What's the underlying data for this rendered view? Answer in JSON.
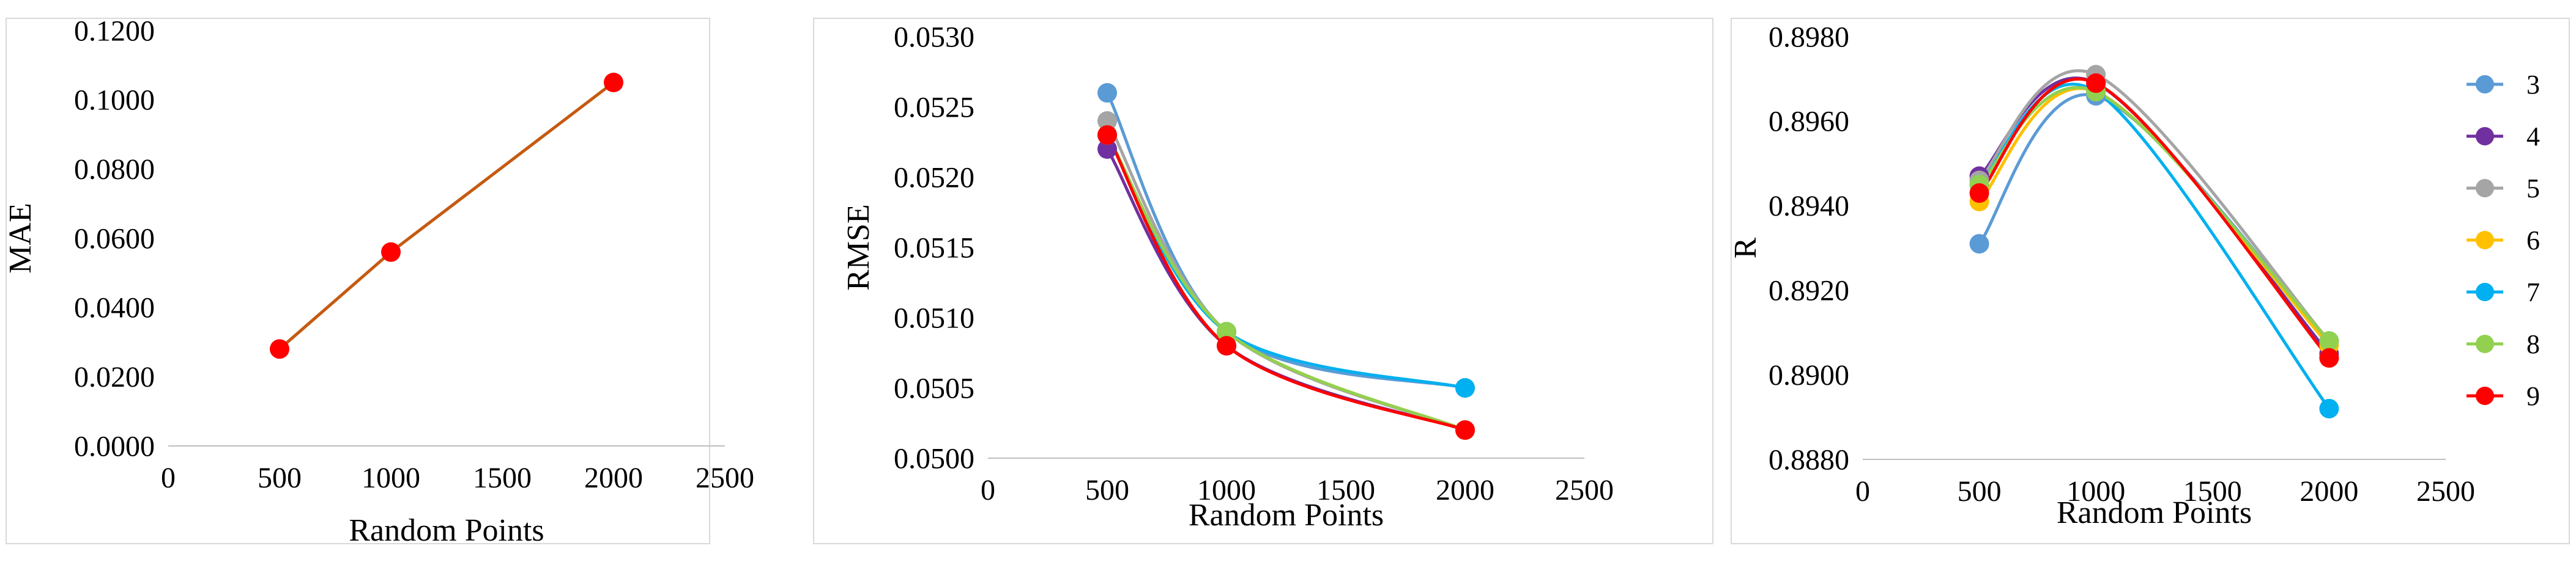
{
  "colors": {
    "3": "#5B9BD5",
    "4": "#7030A0",
    "5": "#A5A5A5",
    "6": "#FFC000",
    "7": "#00B0F0",
    "8": "#92D050",
    "9": "#FF0000",
    "mae_line": "#C55A11",
    "frame": "#D9D9D9",
    "axis": "#BFBFBF"
  },
  "chart_data": [
    {
      "id": "mae",
      "type": "line",
      "xlabel": "Random Points",
      "ylabel": "MAE",
      "xlim": [
        0,
        2500
      ],
      "ylim": [
        0,
        0.12
      ],
      "xticks": [
        0,
        500,
        1000,
        1500,
        2000,
        2500
      ],
      "yticks": [
        0.0,
        0.02,
        0.04,
        0.06,
        0.08,
        0.1,
        0.12
      ],
      "xtick_labels": [
        "0",
        "500",
        "1000",
        "1500",
        "2000",
        "2500"
      ],
      "ytick_labels": [
        "0.0000",
        "0.0200",
        "0.0400",
        "0.0600",
        "0.0800",
        "0.1000",
        "0.1200"
      ],
      "smooth": false,
      "grid": false,
      "legend": null,
      "series": [
        {
          "key": "mae_line",
          "x": [
            500,
            1000,
            2000
          ],
          "y": [
            0.028,
            0.056,
            0.105
          ],
          "color": "#C55A11",
          "marker": "#FF0000"
        }
      ]
    },
    {
      "id": "rmse",
      "type": "line",
      "xlabel": "Random Points",
      "ylabel": "RMSE",
      "xlim": [
        0,
        2500
      ],
      "ylim": [
        0.05,
        0.053
      ],
      "xticks": [
        0,
        500,
        1000,
        1500,
        2000,
        2500
      ],
      "yticks": [
        0.05,
        0.0505,
        0.051,
        0.0515,
        0.052,
        0.0525,
        0.053
      ],
      "xtick_labels": [
        "0",
        "500",
        "1000",
        "1500",
        "2000",
        "2500"
      ],
      "ytick_labels": [
        "0.0500",
        "0.0505",
        "0.0510",
        "0.0515",
        "0.0520",
        "0.0525",
        "0.0530"
      ],
      "smooth": true,
      "grid": false,
      "legend": null,
      "series": [
        {
          "key": "3",
          "x": [
            500,
            1000,
            2000
          ],
          "y": [
            0.0526,
            0.0509,
            0.0505
          ]
        },
        {
          "key": "4",
          "x": [
            500,
            1000,
            2000
          ],
          "y": [
            0.0522,
            0.0508,
            0.0502
          ]
        },
        {
          "key": "5",
          "x": [
            500,
            1000,
            2000
          ],
          "y": [
            0.0524,
            0.0509,
            0.0502
          ]
        },
        {
          "key": "6",
          "x": [
            500,
            1000,
            2000
          ],
          "y": [
            0.0523,
            0.0509,
            0.0502
          ]
        },
        {
          "key": "7",
          "x": [
            500,
            1000,
            2000
          ],
          "y": [
            0.0523,
            0.0509,
            0.0505
          ]
        },
        {
          "key": "8",
          "x": [
            500,
            1000,
            2000
          ],
          "y": [
            0.0523,
            0.0509,
            0.0502
          ]
        },
        {
          "key": "9",
          "x": [
            500,
            1000,
            2000
          ],
          "y": [
            0.0523,
            0.0508,
            0.0502
          ]
        }
      ]
    },
    {
      "id": "r",
      "type": "line",
      "xlabel": "Random Points",
      "ylabel": "R",
      "xlim": [
        0,
        2500
      ],
      "ylim": [
        0.888,
        0.898
      ],
      "xticks": [
        0,
        500,
        1000,
        1500,
        2000,
        2500
      ],
      "yticks": [
        0.888,
        0.89,
        0.892,
        0.894,
        0.896,
        0.898
      ],
      "xtick_labels": [
        "0",
        "500",
        "1000",
        "1500",
        "2000",
        "2500"
      ],
      "ytick_labels": [
        "0.8880",
        "0.8900",
        "0.8920",
        "0.8940",
        "0.8960",
        "0.8980"
      ],
      "smooth": true,
      "grid": false,
      "legend": "right",
      "series": [
        {
          "key": "3",
          "name": "3",
          "x": [
            500,
            1000,
            2000
          ],
          "y": [
            0.8931,
            0.8966,
            0.8908
          ]
        },
        {
          "key": "4",
          "name": "4",
          "x": [
            500,
            1000,
            2000
          ],
          "y": [
            0.8947,
            0.8969,
            0.8905
          ]
        },
        {
          "key": "5",
          "name": "5",
          "x": [
            500,
            1000,
            2000
          ],
          "y": [
            0.8946,
            0.8971,
            0.8908
          ]
        },
        {
          "key": "6",
          "name": "6",
          "x": [
            500,
            1000,
            2000
          ],
          "y": [
            0.8941,
            0.8967,
            0.8907
          ]
        },
        {
          "key": "7",
          "name": "7",
          "x": [
            500,
            1000,
            2000
          ],
          "y": [
            0.8945,
            0.8967,
            0.8892
          ]
        },
        {
          "key": "8",
          "name": "8",
          "x": [
            500,
            1000,
            2000
          ],
          "y": [
            0.8945,
            0.8967,
            0.8908
          ]
        },
        {
          "key": "9",
          "name": "9",
          "x": [
            500,
            1000,
            2000
          ],
          "y": [
            0.8943,
            0.8969,
            0.8904
          ]
        }
      ]
    }
  ]
}
